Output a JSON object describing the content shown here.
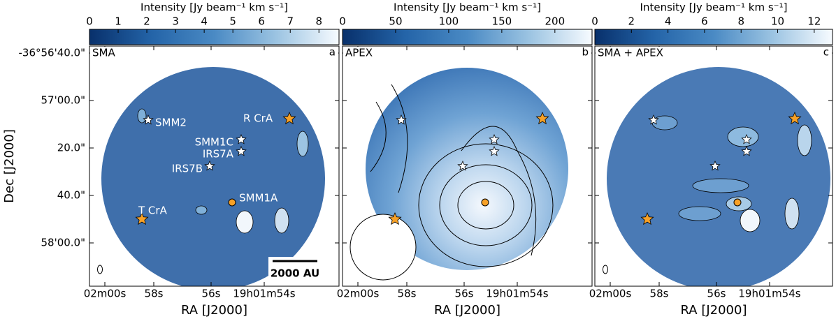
{
  "figure": {
    "y_axis_label": "Dec [J2000]",
    "y_ticks": [
      "-36°56'40.0\"",
      "57'00.0\"",
      "20.0\"",
      "40.0\"",
      "58'00.0\""
    ],
    "panels": [
      {
        "name": "SMA",
        "letter": "a",
        "x_axis_label": "RA [J2000]",
        "x_ticks": [
          "02m00s",
          "58s",
          "56s",
          "19h01m54s"
        ],
        "colorbar": {
          "label": "Intensity [Jy beam⁻¹ km s⁻¹]",
          "range": [
            0,
            8.7
          ],
          "ticks": [
            0,
            1,
            2,
            3,
            4,
            5,
            6,
            7,
            8
          ]
        },
        "annotations": [
          "SMM2",
          "R CrA",
          "SMM1C",
          "IRS7A",
          "IRS7B",
          "SMM1A",
          "T CrA",
          "2000 AU"
        ]
      },
      {
        "name": "APEX",
        "letter": "b",
        "x_axis_label": "RA [J2000]",
        "x_ticks": [
          "02m00s",
          "58s",
          "56s",
          "19h01m54s"
        ],
        "colorbar": {
          "label": "Intensity [Jy beam⁻¹ km s⁻¹]",
          "range": [
            0,
            235
          ],
          "ticks": [
            0,
            50,
            100,
            150,
            200
          ]
        }
      },
      {
        "name": "SMA + APEX",
        "letter": "c",
        "x_axis_label": "RA [J2000]",
        "x_ticks": [
          "02m00s",
          "58s",
          "56s",
          "19h01m54s"
        ],
        "colorbar": {
          "label": "Intensity [Jy beam⁻¹ km s⁻¹]",
          "range": [
            0,
            13
          ],
          "ticks": [
            0,
            2,
            4,
            6,
            8,
            10,
            12
          ]
        }
      }
    ]
  }
}
